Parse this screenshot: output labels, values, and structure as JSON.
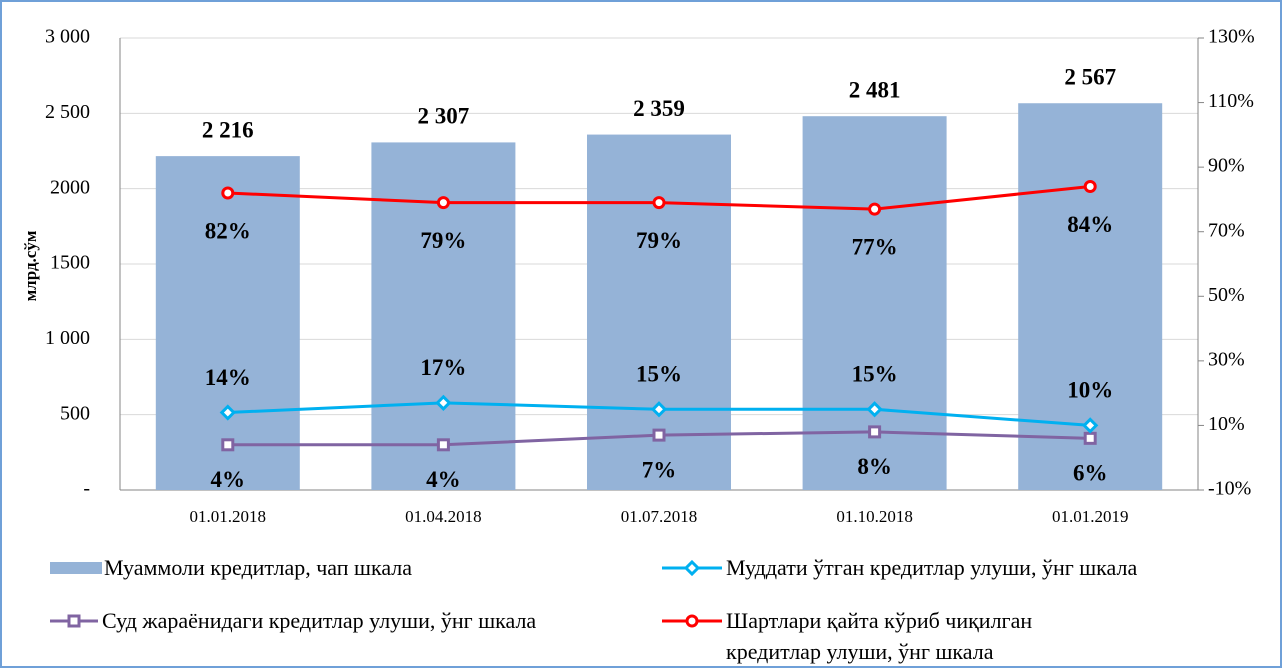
{
  "chart_data": {
    "type": "bar",
    "y_label": "млрд.сўм",
    "categories": [
      "01.01.2018",
      "01.04.2018",
      "01.07.2018",
      "01.10.2018",
      "01.01.2019"
    ],
    "ylim": [
      0,
      3000
    ],
    "yticks": [
      {
        "value": 0,
        "label": "-"
      },
      500,
      {
        "value": 1000,
        "label": "1 000"
      },
      1500,
      2000,
      {
        "value": 2500,
        "label": "2 500"
      },
      {
        "value": 3000,
        "label": "3 000"
      }
    ],
    "y2lim": [
      -10,
      130
    ],
    "y2ticks": [
      {
        "value": -10,
        "label": "-10%"
      },
      {
        "value": 10,
        "label": "10%"
      },
      {
        "value": 30,
        "label": "30%"
      },
      {
        "value": 50,
        "label": "50%"
      },
      {
        "value": 70,
        "label": "70%"
      },
      {
        "value": 90,
        "label": "90%"
      },
      {
        "value": 110,
        "label": "110%"
      },
      {
        "value": 130,
        "label": "130%"
      }
    ],
    "grid": true,
    "series": [
      {
        "name": "Муаммоли кредитлар, чап шкала",
        "type": "bar",
        "color": "#95b3d7",
        "values": [
          2216,
          2307,
          2359,
          2481,
          2567
        ],
        "value_labels": [
          "2 216",
          "2 307",
          "2 359",
          "2 481",
          "2 567"
        ]
      },
      {
        "name": "Муддати ўтган кредитлар улуши, ўнг шкала",
        "type": "line",
        "axis": "y2",
        "marker": "diamond",
        "color": "#00b0f0",
        "values": [
          14,
          17,
          15,
          15,
          10
        ],
        "value_labels": [
          "14%",
          "17%",
          "15%",
          "15%",
          "10%"
        ]
      },
      {
        "name": "Суд жараёнидаги кредитлар улуши, ўнг шкала",
        "type": "line",
        "axis": "y2",
        "marker": "square",
        "color": "#8064a2",
        "values": [
          4,
          4,
          7,
          8,
          6
        ],
        "value_labels": [
          "4%",
          "4%",
          "7%",
          "8%",
          "6%"
        ]
      },
      {
        "name": "Шартлари қайта кўриб чиқилган кредитлар улуши, ўнг шкала",
        "type": "line",
        "axis": "y2",
        "marker": "circle",
        "color": "#ff0000",
        "values": [
          82,
          79,
          79,
          77,
          84
        ],
        "value_labels": [
          "82%",
          "79%",
          "79%",
          "77%",
          "84%"
        ]
      }
    ]
  }
}
